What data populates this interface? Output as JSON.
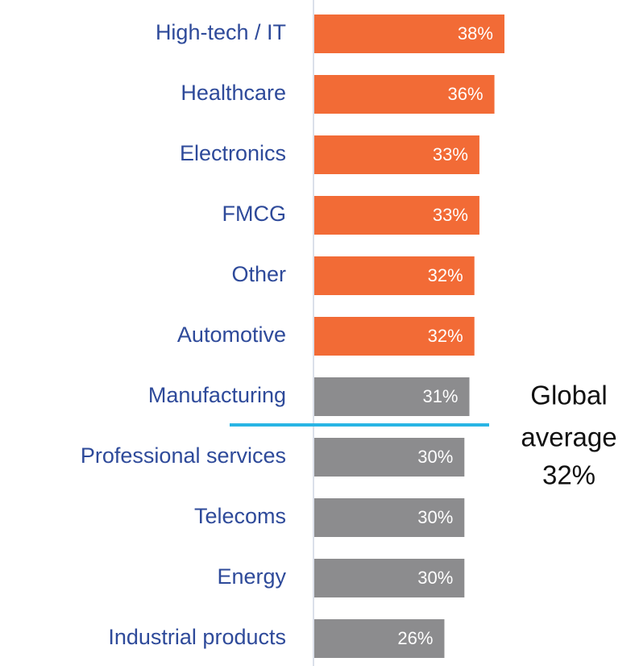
{
  "chart_data": {
    "type": "barh",
    "categories": [
      "High-tech / IT",
      "Healthcare",
      "Electronics",
      "FMCG",
      "Other",
      "Automotive",
      "Manufacturing",
      "Professional services",
      "Telecoms",
      "Energy",
      "Industrial products"
    ],
    "values": [
      38,
      36,
      33,
      33,
      32,
      32,
      31,
      30,
      30,
      30,
      26
    ],
    "value_labels": [
      "38%",
      "36%",
      "33%",
      "33%",
      "32%",
      "32%",
      "31%",
      "30%",
      "30%",
      "30%",
      "26%"
    ],
    "colors": [
      "#f26b36",
      "#f26b36",
      "#f26b36",
      "#f26b36",
      "#f26b36",
      "#f26b36",
      "#8c8c8e",
      "#8c8c8e",
      "#8c8c8e",
      "#8c8c8e",
      "#8c8c8e"
    ],
    "annotation": {
      "lines": [
        "Global",
        "average",
        "32%"
      ],
      "color": "#29b5e4"
    }
  }
}
